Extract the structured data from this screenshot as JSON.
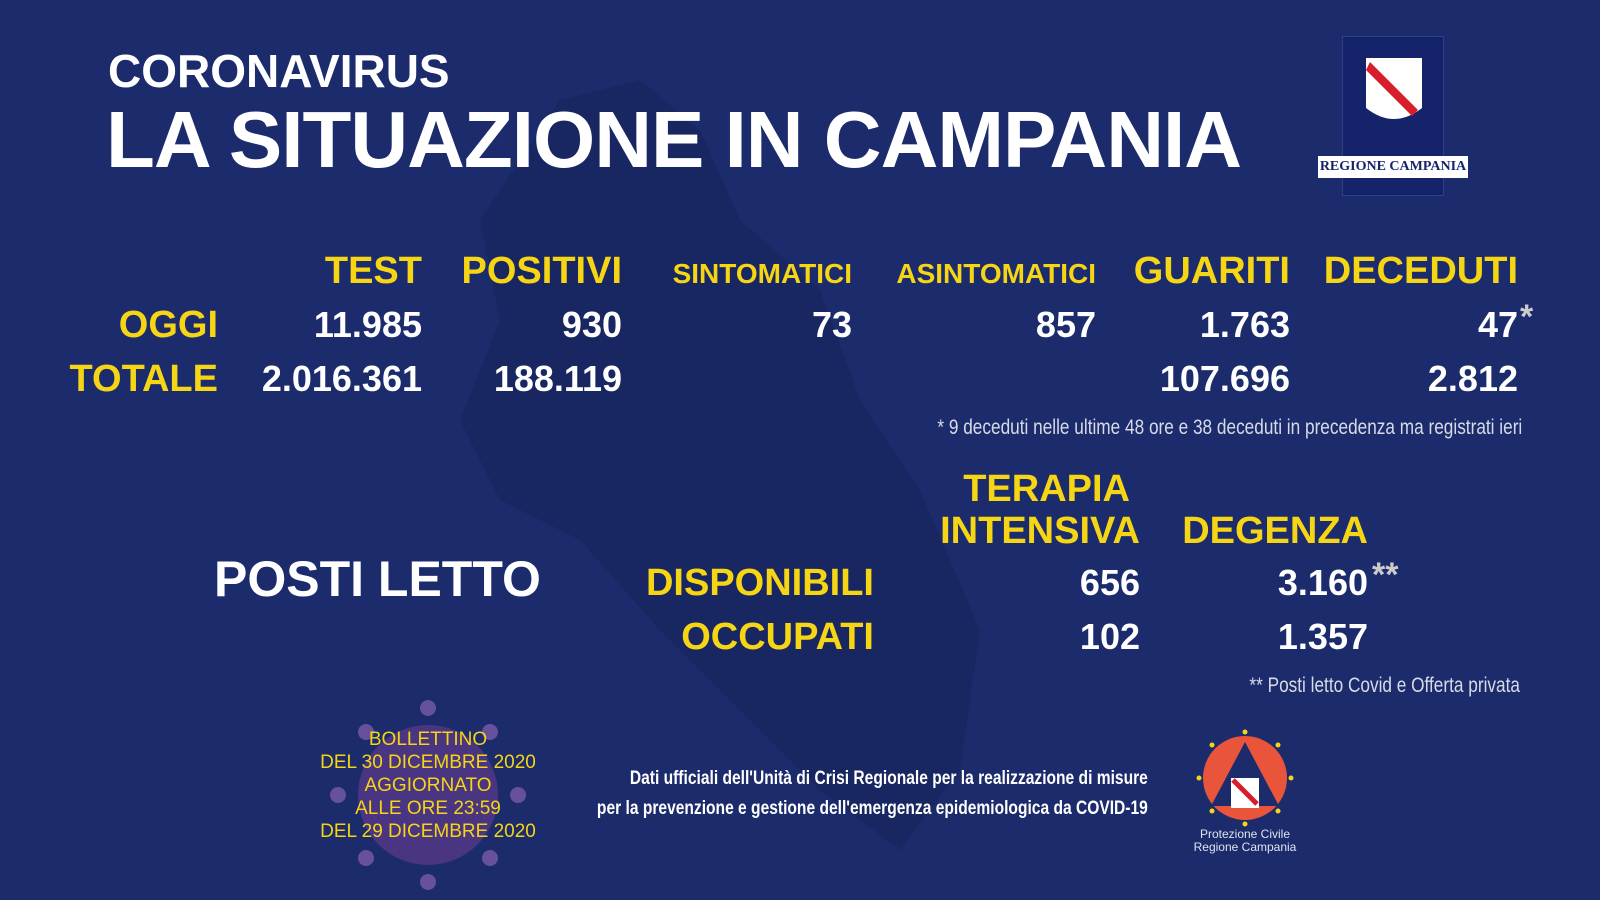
{
  "header": {
    "subtitle": "CORONAVIRUS",
    "title": "LA SITUAZIONE IN CAMPANIA"
  },
  "logo_region": {
    "text": "REGIONE CAMPANIA"
  },
  "stats": {
    "columns": [
      "TEST",
      "POSITIVI",
      "SINTOMATICI",
      "ASINTOMATICI",
      "GUARITI",
      "DECEDUTI"
    ],
    "rows": [
      {
        "label": "OGGI",
        "values": [
          "11.985",
          "930",
          "73",
          "857",
          "1.763",
          "47"
        ],
        "mark": "*"
      },
      {
        "label": "TOTALE",
        "values": [
          "2.016.361",
          "188.119",
          "",
          "",
          "107.696",
          "2.812"
        ]
      }
    ],
    "note": "* 9 deceduti nelle ultime 48 ore e 38 deceduti in precedenza ma registrati ieri"
  },
  "beds": {
    "title": "POSTI LETTO",
    "columns": [
      "TERAPIA",
      "INTENSIVA",
      "DEGENZA"
    ],
    "rows": [
      {
        "label": "DISPONIBILI",
        "values": [
          "656",
          "3.160"
        ],
        "mark": "**"
      },
      {
        "label": "OCCUPATI",
        "values": [
          "102",
          "1.357"
        ]
      }
    ],
    "note": "** Posti letto Covid e Offerta privata"
  },
  "bulletin": [
    "BOLLETTINO",
    "DEL 30 DICEMBRE 2020",
    "AGGIORNATO",
    "ALLE ORE 23:59",
    "DEL 29 DICEMBRE 2020"
  ],
  "source": [
    "Dati ufficiali dell'Unità di Crisi Regionale per la realizzazione di misure",
    "per la prevenzione e gestione dell'emergenza epidemiologica da COVID-19"
  ],
  "logo_pc": [
    "Protezione Civile",
    "Regione Campania"
  ],
  "colors": {
    "background": "#1b2b6c",
    "accent": "#f6d514"
  }
}
